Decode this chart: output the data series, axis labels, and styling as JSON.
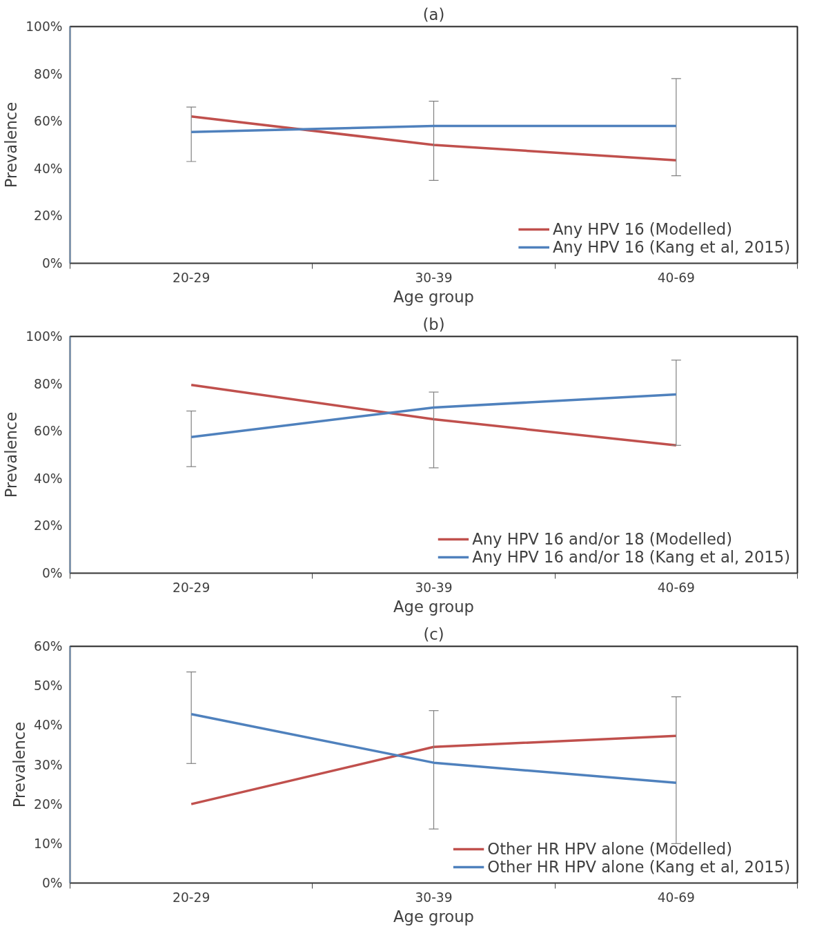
{
  "chart_data": [
    {
      "type": "line",
      "title": "(a)",
      "xlabel": "Age group",
      "ylabel": "Prevalence",
      "categories": [
        "20-29",
        "30-39",
        "40-69"
      ],
      "ylim": [
        0,
        100
      ],
      "yticks": [
        {
          "value": 0,
          "label": "0%"
        },
        {
          "value": 20,
          "label": "20%"
        },
        {
          "value": 40,
          "label": "40%"
        },
        {
          "value": 60,
          "label": "60%"
        },
        {
          "value": 80,
          "label": "80%"
        },
        {
          "value": 100,
          "label": "100%"
        }
      ],
      "grid": false,
      "legend": "bottom right",
      "marker": "none",
      "line_style": "solid",
      "series": [
        {
          "name": "Any HPV 16 (Modelled)",
          "color": "#c0504d",
          "values": [
            62,
            50,
            43.5
          ]
        },
        {
          "name": "Any HPV 16 (Kang et al, 2015)",
          "color": "#4f81bd",
          "values": [
            55.5,
            58,
            58
          ],
          "errors": [
            [
              43,
              66
            ],
            [
              35,
              68.5
            ],
            [
              37,
              78
            ]
          ]
        }
      ]
    },
    {
      "type": "line",
      "title": "(b)",
      "xlabel": "Age group",
      "ylabel": "Prevalence",
      "categories": [
        "20-29",
        "30-39",
        "40-69"
      ],
      "ylim": [
        0,
        100
      ],
      "yticks": [
        {
          "value": 0,
          "label": "0%"
        },
        {
          "value": 20,
          "label": "20%"
        },
        {
          "value": 40,
          "label": "40%"
        },
        {
          "value": 60,
          "label": "60%"
        },
        {
          "value": 80,
          "label": "80%"
        },
        {
          "value": 100,
          "label": "100%"
        }
      ],
      "grid": false,
      "legend": "bottom right",
      "marker": "none",
      "line_style": "solid",
      "series": [
        {
          "name": "Any HPV 16 and/or 18 (Modelled)",
          "color": "#c0504d",
          "values": [
            79.5,
            65,
            54
          ]
        },
        {
          "name": "Any HPV 16 and/or 18 (Kang et al, 2015)",
          "color": "#4f81bd",
          "values": [
            57.5,
            70,
            75.5
          ],
          "errors": [
            [
              45,
              68.5
            ],
            [
              44.5,
              76.5
            ],
            [
              54,
              90
            ]
          ]
        }
      ]
    },
    {
      "type": "line",
      "title": "(c)",
      "xlabel": "Age group",
      "ylabel": "Prevalence",
      "categories": [
        "20-29",
        "30-39",
        "40-69"
      ],
      "ylim": [
        0,
        60
      ],
      "yticks": [
        {
          "value": 0,
          "label": "0%"
        },
        {
          "value": 10,
          "label": "10%"
        },
        {
          "value": 20,
          "label": "20%"
        },
        {
          "value": 30,
          "label": "30%"
        },
        {
          "value": 40,
          "label": "40%"
        },
        {
          "value": 50,
          "label": "50%"
        },
        {
          "value": 60,
          "label": "60%"
        }
      ],
      "grid": false,
      "legend": "bottom right",
      "marker": "none",
      "line_style": "solid",
      "series": [
        {
          "name": "Other HR HPV alone (Modelled)",
          "color": "#c0504d",
          "values": [
            20,
            34.5,
            37.3
          ]
        },
        {
          "name": "Other HR HPV alone (Kang et al, 2015)",
          "color": "#4f81bd",
          "values": [
            42.8,
            30.5,
            25.4
          ],
          "errors": [
            [
              30.3,
              53.5
            ],
            [
              13.7,
              43.7
            ],
            [
              10,
              47.2
            ]
          ]
        }
      ]
    }
  ]
}
